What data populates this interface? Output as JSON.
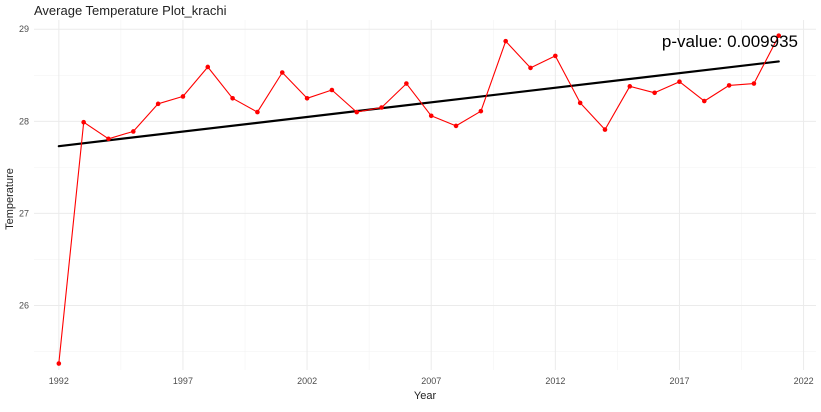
{
  "chart_data": {
    "type": "line",
    "title": "Average Temperature Plot_krachi",
    "xlabel": "Year",
    "ylabel": "Temperature",
    "annotation": "p-value: 0.009935",
    "xlim": [
      1991.0,
      2022.5
    ],
    "ylim": [
      25.3,
      29.1
    ],
    "x_ticks": [
      1992,
      1997,
      2002,
      2007,
      2012,
      2017,
      2022
    ],
    "y_ticks": [
      26,
      27,
      28,
      29
    ],
    "x_tick_labels": [
      "1992",
      "1997",
      "2002",
      "2007",
      "2012",
      "2017",
      "2022"
    ],
    "y_tick_labels": [
      "26",
      "27",
      "28",
      "29"
    ],
    "grid": true,
    "legend": "none",
    "series": [
      {
        "type": "line+points",
        "color": "#ff0000",
        "x": [
          1992,
          1993,
          1994,
          1995,
          1996,
          1997,
          1998,
          1999,
          2000,
          2001,
          2002,
          2003,
          2004,
          2005,
          2006,
          2007,
          2008,
          2009,
          2010,
          2011,
          2012,
          2013,
          2014,
          2015,
          2016,
          2017,
          2018,
          2019,
          2020,
          2021
        ],
        "values": [
          25.37,
          27.99,
          27.81,
          27.89,
          28.19,
          28.27,
          28.59,
          28.25,
          28.1,
          28.53,
          28.25,
          28.34,
          28.1,
          28.15,
          28.41,
          28.06,
          27.95,
          28.11,
          28.87,
          28.58,
          28.71,
          28.2,
          27.91,
          28.38,
          28.31,
          28.43,
          28.22,
          28.39,
          28.41,
          28.93
        ]
      },
      {
        "type": "trend",
        "color": "#000000",
        "x": [
          1992,
          2021
        ],
        "values": [
          27.73,
          28.65
        ]
      }
    ]
  }
}
